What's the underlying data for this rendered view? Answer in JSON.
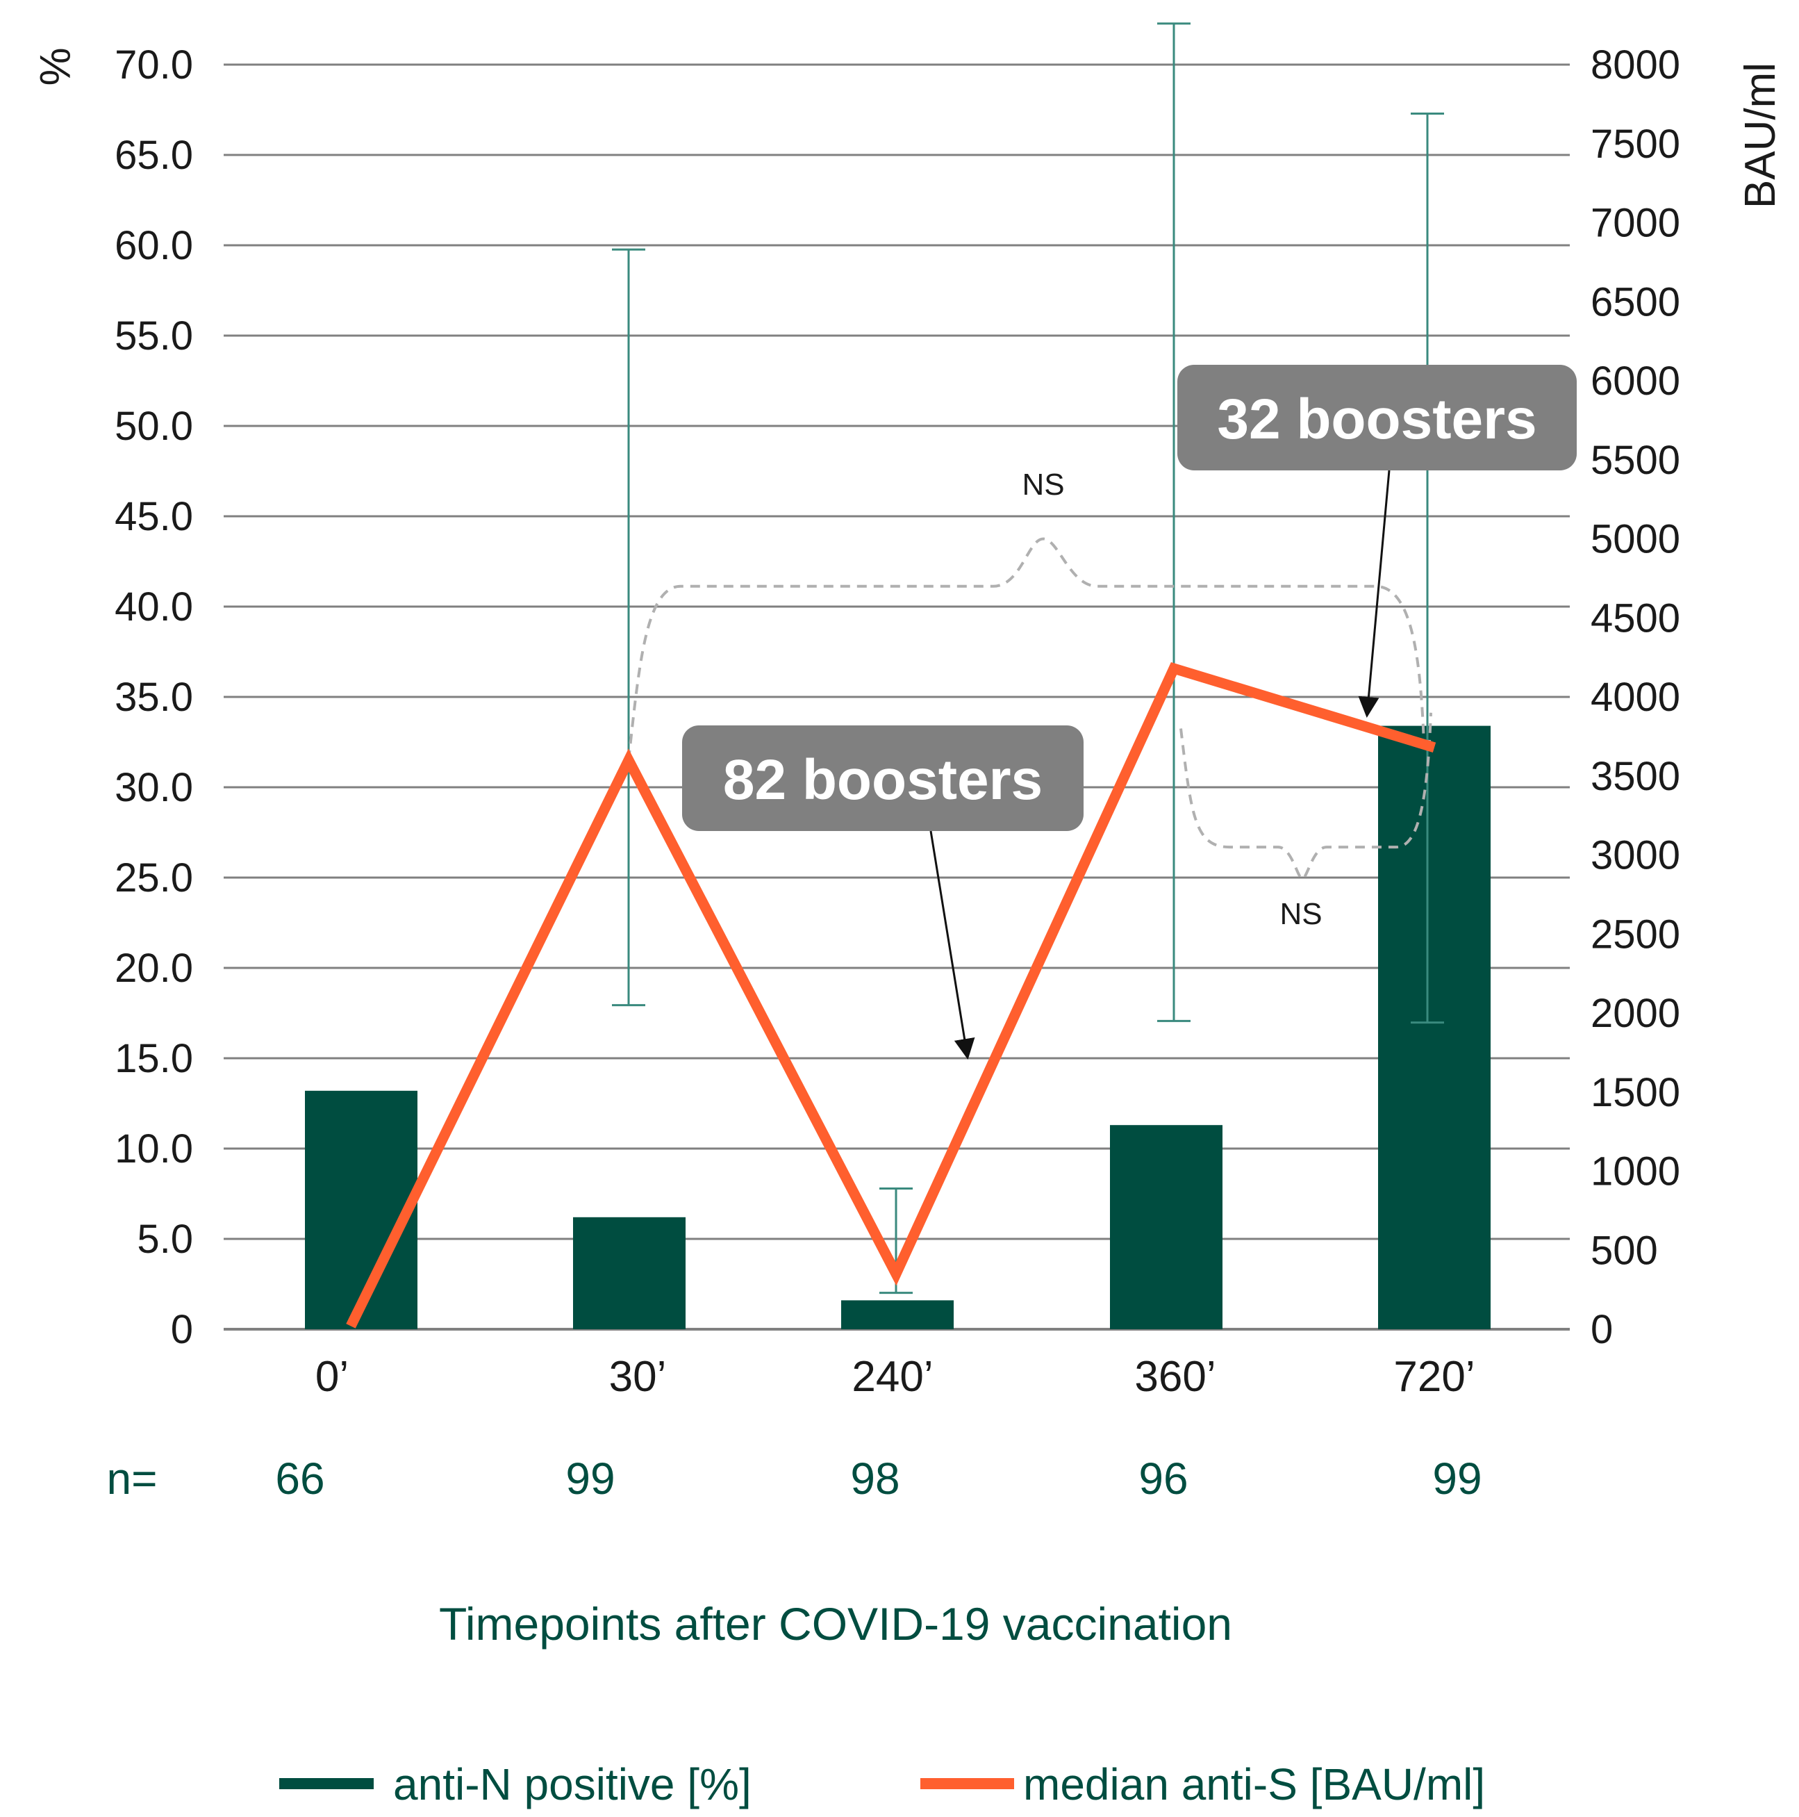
{
  "chart_data": {
    "type": "bar+line",
    "categories": [
      "0’",
      "30’",
      "240’",
      "360’",
      "720’"
    ],
    "n_label": "n=",
    "n_values": [
      "66",
      "99",
      "98",
      "96",
      "99"
    ],
    "xlabel": "Timepoints after COVID-19 vaccination",
    "left_axis": {
      "label": "%",
      "ylim": [
        0,
        70
      ],
      "ticks": [
        "0",
        "5.0",
        "10.0",
        "15.0",
        "20.0",
        "25.0",
        "30.0",
        "35.0",
        "40.0",
        "45.0",
        "50.0",
        "55.0",
        "60.0",
        "65.0",
        "70.0"
      ]
    },
    "right_axis": {
      "label": "BAU/ml",
      "ylim": [
        0,
        8000
      ],
      "ticks": [
        "0",
        "500",
        "1000",
        "1500",
        "2000",
        "2500",
        "3000",
        "3500",
        "4000",
        "4500",
        "5000",
        "5500",
        "6000",
        "6500",
        "7000",
        "7500",
        "8000"
      ]
    },
    "series": [
      {
        "name": "anti-N positive [%]",
        "kind": "bar",
        "axis": "left",
        "color": "#004d40",
        "values": [
          13.2,
          6.2,
          1.6,
          11.3,
          33.4
        ]
      },
      {
        "name": "median anti-S [BAU/ml]",
        "kind": "line",
        "axis": "right",
        "color": "#ff5f2e",
        "values": [
          20,
          3600,
          350,
          4180,
          3680
        ],
        "error_bars": [
          null,
          [
            2050,
            6830
          ],
          [
            230,
            890
          ],
          [
            1950,
            8260
          ],
          [
            1940,
            7690
          ]
        ]
      }
    ],
    "annotations": [
      {
        "text": "82 boosters",
        "points_to": "240’"
      },
      {
        "text": "32 boosters",
        "points_to": "720’"
      },
      {
        "text": "NS",
        "bracket": [
          "30’",
          "720’"
        ]
      },
      {
        "text": "NS",
        "bracket": [
          "360’",
          "720’"
        ]
      }
    ],
    "colors": {
      "bar": "#004d40",
      "line": "#ff5f2e",
      "grid": "#808080",
      "error": "#3a8a7e",
      "callout": "#808080",
      "bracket": "#b0b0b0"
    }
  }
}
